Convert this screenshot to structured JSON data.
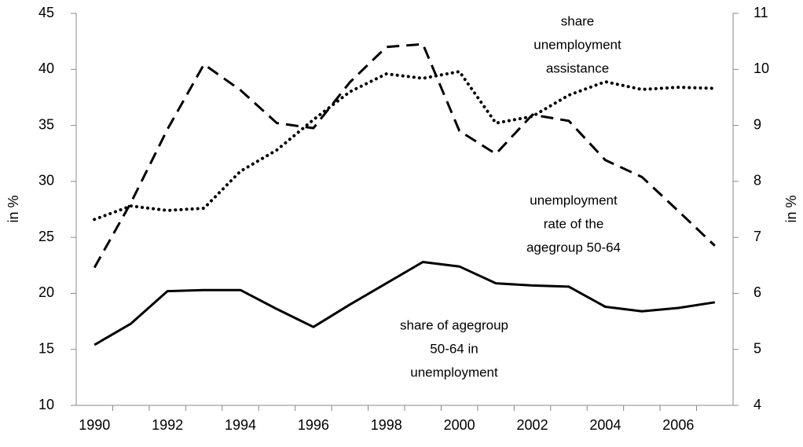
{
  "chart_data": {
    "type": "line",
    "categories": [
      "1990",
      null,
      "1992",
      null,
      "1994",
      null,
      "1996",
      null,
      "1998",
      null,
      "2000",
      null,
      "2002",
      null,
      "2004",
      null,
      "2006",
      null
    ],
    "ylabel": "in %",
    "y2label": "in %",
    "ylim": [
      10,
      45
    ],
    "yticks": [
      10,
      15,
      20,
      25,
      30,
      35,
      40,
      45
    ],
    "y2lim": [
      4,
      11
    ],
    "y2ticks": [
      4,
      5,
      6,
      7,
      8,
      9,
      10,
      11
    ],
    "grid": false,
    "series": [
      {
        "label": [
          "share of agegroup",
          "50-64 in",
          "unemployment"
        ],
        "color": "#000000",
        "style": "solid",
        "values": [
          15.4,
          17.3,
          20.2,
          20.3,
          20.3,
          18.6,
          17.0,
          19.0,
          20.9,
          22.8,
          22.4,
          20.9,
          20.7,
          20.6,
          18.8,
          18.4,
          18.7,
          19.2
        ]
      },
      {
        "label": [
          "unemployment",
          "rate of the",
          "agegroup 50-64"
        ],
        "color": "#000000",
        "style": "dashed",
        "axis": "y2",
        "values": [
          6.46,
          7.62,
          8.93,
          10.09,
          9.63,
          9.04,
          8.95,
          9.77,
          10.4,
          10.45,
          8.9,
          8.49,
          9.19,
          9.08,
          8.38,
          8.08,
          7.47,
          6.85
        ]
      },
      {
        "label": [
          "share",
          "unemployment",
          "assistance"
        ],
        "color": "#000000",
        "style": "dotted",
        "values": [
          26.6,
          27.8,
          27.4,
          27.6,
          30.9,
          32.8,
          35.5,
          38.0,
          39.6,
          39.2,
          39.8,
          35.2,
          35.8,
          37.7,
          38.9,
          38.2,
          38.4,
          38.3
        ]
      }
    ]
  }
}
